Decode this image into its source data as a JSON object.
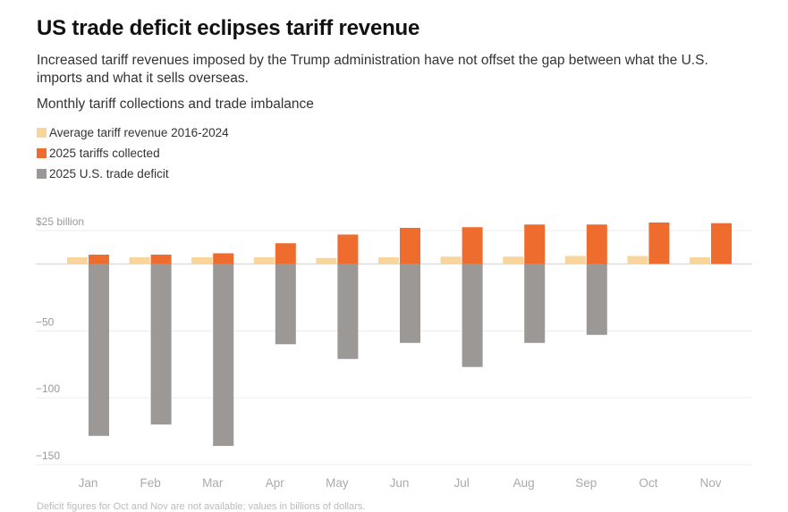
{
  "header": {
    "title": "US trade deficit eclipses tariff revenue",
    "subtitle": "Increased tariff revenues imposed by the Trump administration have not offset the gap between what the U.S. imports and what it sells overseas."
  },
  "chart_data": {
    "type": "bar",
    "title": "Monthly tariff collections and trade imbalance",
    "categories": [
      "Jan",
      "Feb",
      "Mar",
      "Apr",
      "May",
      "Jun",
      "Jul",
      "Aug",
      "Sep",
      "Oct",
      "Nov"
    ],
    "series": [
      {
        "name": "Average tariff revenue 2016-2024",
        "color": "#f9d49b",
        "values": [
          5,
          5,
          5,
          5,
          4.5,
          5,
          5.5,
          5.5,
          6,
          6,
          5
        ]
      },
      {
        "name": "2025 tariffs collected",
        "color": "#ee6c2e",
        "values": [
          7,
          7,
          8,
          15.5,
          22,
          27,
          27.5,
          29.5,
          29.5,
          31,
          30.5
        ]
      },
      {
        "name": "2025 U.S. trade deficit",
        "color": "#9b9895",
        "values": [
          -128.5,
          -120,
          -136,
          -60,
          -71,
          -59,
          -77,
          -59,
          -53,
          null,
          null
        ]
      }
    ],
    "ylim": [
      -150,
      25
    ],
    "y_ticks": [
      25,
      0,
      -50,
      -100,
      -150
    ],
    "y_tick_labels": [
      "$25 billion",
      "",
      "−50",
      "−100",
      "−150"
    ],
    "xlabel": "",
    "ylabel": "",
    "grid": true,
    "legend_position": "top-left"
  },
  "footnote": "Deficit figures for Oct and Nov are not available; values in billions of dollars."
}
